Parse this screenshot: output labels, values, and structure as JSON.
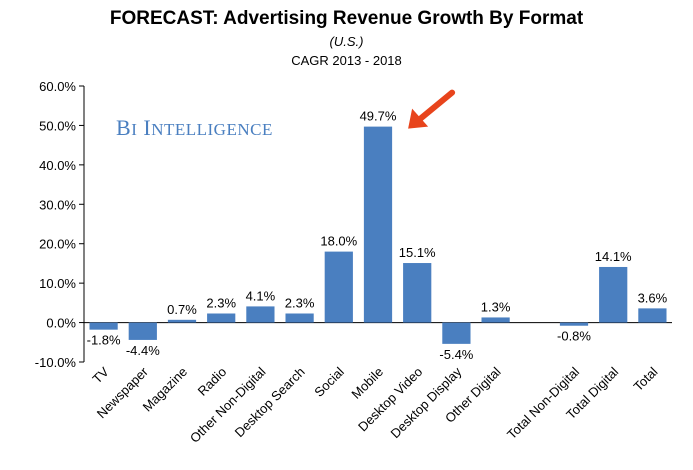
{
  "chart_data": {
    "type": "bar",
    "title": "FORECAST: Advertising Revenue Growth By Format",
    "subtitle": "(U.S.)",
    "subtitle2": "CAGR 2013 - 2018",
    "watermark": "BI Intelligence",
    "categories": [
      "TV",
      "Newspaper",
      "Magazine",
      "Radio",
      "Other Non-Digital",
      "Desktop Search",
      "Social",
      "Mobile",
      "Desktop Video",
      "Desktop Display",
      "Other Digital",
      "",
      "Total Non-Digital",
      "Total Digital",
      "Total"
    ],
    "values": [
      -1.8,
      -4.4,
      0.7,
      2.3,
      4.1,
      2.3,
      18.0,
      49.7,
      15.1,
      -5.4,
      1.3,
      null,
      -0.8,
      14.1,
      3.6
    ],
    "data_labels": [
      "-1.8%",
      "-4.4%",
      "0.7%",
      "2.3%",
      "4.1%",
      "2.3%",
      "18.0%",
      "49.7%",
      "15.1%",
      "-5.4%",
      "1.3%",
      "",
      "-0.8%",
      "14.1%",
      "3.6%"
    ],
    "y_ticks": [
      "-10.0%",
      "0.0%",
      "10.0%",
      "20.0%",
      "30.0%",
      "40.0%",
      "50.0%",
      "60.0%"
    ],
    "ylim": [
      -10,
      60
    ],
    "grid": false,
    "bar_color": "#4a7fc0",
    "annotation": {
      "type": "arrow",
      "color": "#e8441c",
      "points_to": "Mobile"
    }
  }
}
